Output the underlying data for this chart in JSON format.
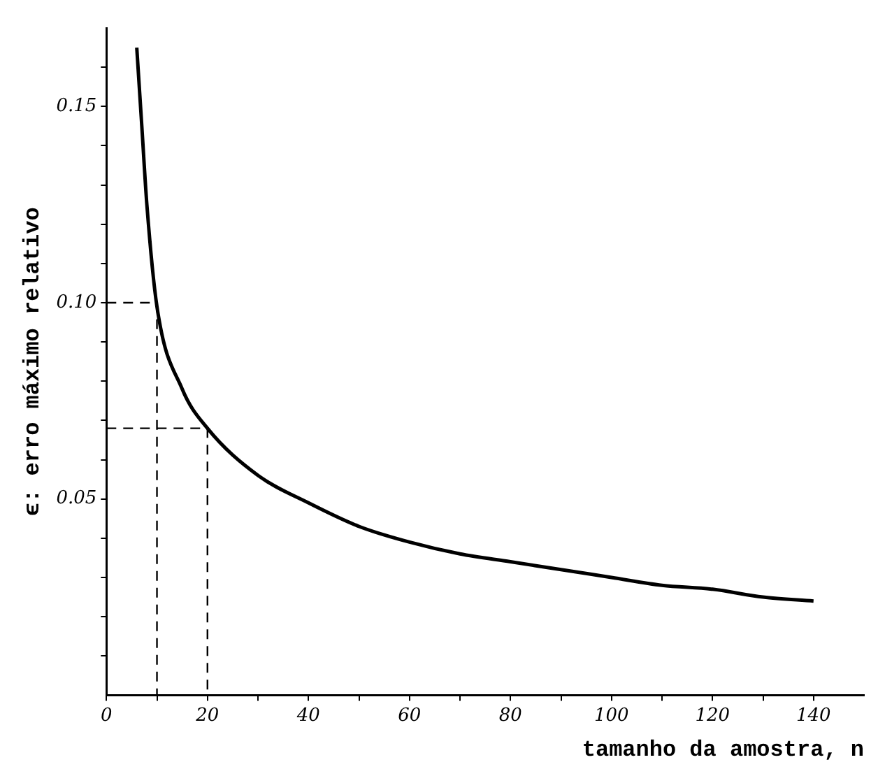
{
  "chart_data": {
    "type": "line",
    "xlabel": "tamanho da amostra, n",
    "ylabel": "ϵ: erro máximo relativo",
    "xlim": [
      0,
      150
    ],
    "ylim": [
      0,
      0.17
    ],
    "xticks": [
      0,
      {
        "value": 10,
        "label": null
      },
      20,
      {
        "value": 30,
        "label": null
      },
      40,
      {
        "value": 50,
        "label": null
      },
      60,
      {
        "value": 70,
        "label": null
      },
      80,
      {
        "value": 90,
        "label": null
      },
      100,
      {
        "value": 110,
        "label": null
      },
      120,
      {
        "value": 130,
        "label": null
      },
      140
    ],
    "yticks": [
      {
        "value": 0.01,
        "label": null
      },
      {
        "value": 0.02,
        "label": null
      },
      {
        "value": 0.03,
        "label": null
      },
      {
        "value": 0.04,
        "label": null
      },
      {
        "value": 0.05,
        "label": "0.05"
      },
      {
        "value": 0.06,
        "label": null
      },
      {
        "value": 0.07,
        "label": null
      },
      {
        "value": 0.08,
        "label": null
      },
      {
        "value": 0.09,
        "label": null
      },
      {
        "value": 0.1,
        "label": "0.10"
      },
      {
        "value": 0.11,
        "label": null
      },
      {
        "value": 0.12,
        "label": null
      },
      {
        "value": 0.13,
        "label": null
      },
      {
        "value": 0.14,
        "label": null
      },
      {
        "value": 0.15,
        "label": "0.15"
      },
      {
        "value": 0.16,
        "label": null
      }
    ],
    "grid": false,
    "legend": false,
    "marker": "none",
    "series": [
      {
        "color": "#000000",
        "line_style": "solid",
        "x": [
          6,
          7,
          8,
          10,
          15,
          20,
          30,
          40,
          50,
          60,
          70,
          80,
          90,
          100,
          110,
          120,
          130,
          140
        ],
        "values": [
          0.165,
          0.145,
          0.125,
          0.099,
          0.078,
          0.068,
          0.056,
          0.049,
          0.043,
          0.039,
          0.036,
          0.034,
          0.032,
          0.03,
          0.028,
          0.027,
          0.025,
          0.024
        ]
      },
      {
        "color": "#000000",
        "line_style": "dashed",
        "x": [
          0,
          10,
          10
        ],
        "values": [
          0.1,
          0.1,
          0
        ]
      },
      {
        "color": "#000000",
        "line_style": "dashed",
        "x": [
          0,
          20,
          20
        ],
        "values": [
          0.068,
          0.068,
          0
        ]
      }
    ]
  }
}
